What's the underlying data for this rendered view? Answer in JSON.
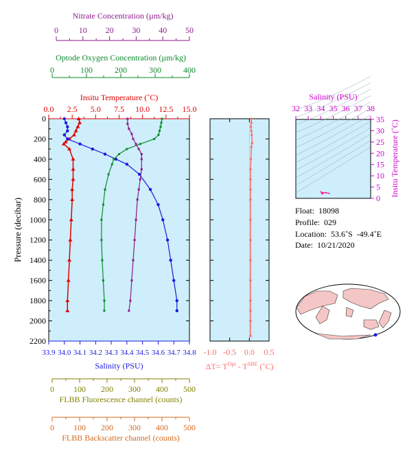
{
  "colors": {
    "nitrate": "#8b1a8b",
    "oxygen": "#0a8a2a",
    "temperature": "#e00000",
    "salinity": "#1a1add",
    "fluorescence": "#808000",
    "backscatter": "#d2691e",
    "delta_t": "#ff6a6a",
    "ts_axis": "#cc00cc",
    "plot_bg": "#cdeefa",
    "ts_point": "#ff1493",
    "land": "#f5c6c6",
    "ocean": "#ffffff"
  },
  "info": {
    "float_label": "Float:",
    "float_value": "18098",
    "profile_label": "Profile:",
    "profile_value": "029",
    "location_label": "Location:",
    "location_value": "53.6˚S  -49.4˚E",
    "date_label": "Date:",
    "date_value": "10/21/2020"
  },
  "delta_t_label": "ΔT= T",
  "delta_t_sup1": "Opt",
  "delta_t_mid": " - T",
  "delta_t_sup2": "SBE",
  "delta_t_unit": " (˚C)",
  "chart_data": [
    {
      "type": "line",
      "ylabel": "Pressure (decibar)",
      "ylim": [
        2200,
        0
      ],
      "yticks": [
        0,
        200,
        400,
        600,
        800,
        1000,
        1200,
        1400,
        1600,
        1800,
        2000,
        2200
      ],
      "ytick_labels": [
        "0",
        "200",
        "400",
        "600",
        "800",
        "1000",
        "1200",
        "1400",
        "1600",
        "1800",
        "2000",
        "2200"
      ],
      "axes": {
        "nitrate": {
          "label": "Nitrate Concentration (µm/kg)",
          "range": [
            0,
            50
          ],
          "ticks": [
            "0",
            "10",
            "20",
            "30",
            "40",
            "50"
          ]
        },
        "oxygen": {
          "label": "Optode Oxygen Concentration (µm/kg)",
          "range": [
            0,
            400
          ],
          "ticks": [
            "0",
            "100",
            "200",
            "300",
            "400"
          ]
        },
        "temperature": {
          "label": "Insitu Temperature (˚C)",
          "range": [
            0,
            15
          ],
          "ticks": [
            "0.0",
            "2.5",
            "5.0",
            "7.5",
            "10.0",
            "12.5",
            "15.0"
          ]
        },
        "salinity": {
          "label": "Salinity (PSU)",
          "range": [
            33.9,
            34.8
          ],
          "ticks": [
            "33.9",
            "34.0",
            "34.1",
            "34.2",
            "34.3",
            "34.4",
            "34.5",
            "34.6",
            "34.7",
            "34.8"
          ]
        },
        "fluorescence": {
          "label": "FLBB Fluorescence channel (counts)",
          "range": [
            0,
            500
          ],
          "ticks": [
            "0",
            "100",
            "200",
            "300",
            "400",
            "500"
          ]
        },
        "backscatter": {
          "label": "FLBB Backscatter channel (counts)",
          "range": [
            0,
            500
          ],
          "ticks": [
            "0",
            "100",
            "200",
            "300",
            "400",
            "500"
          ]
        }
      },
      "series": [
        {
          "name": "temperature",
          "x": [
            3.2,
            3.3,
            3.1,
            2.9,
            2.7,
            2.2,
            1.8,
            1.6,
            2.2,
            2.6,
            2.6,
            2.6,
            2.5,
            2.5,
            2.4,
            2.3,
            2.2,
            2.1,
            2.0,
            2.0
          ],
          "y": [
            0,
            40,
            80,
            120,
            160,
            200,
            230,
            250,
            300,
            400,
            500,
            600,
            700,
            800,
            1000,
            1200,
            1400,
            1600,
            1800,
            1900
          ]
        },
        {
          "name": "salinity",
          "x": [
            34.0,
            34.01,
            34.02,
            34.02,
            34.0,
            34.02,
            34.1,
            34.18,
            34.26,
            34.33,
            34.4,
            34.48,
            34.55,
            34.6,
            34.63,
            34.66,
            34.68,
            34.7,
            34.72,
            34.72
          ],
          "y": [
            0,
            40,
            80,
            120,
            160,
            200,
            250,
            300,
            350,
            400,
            450,
            550,
            700,
            850,
            1000,
            1200,
            1400,
            1600,
            1800,
            1900
          ]
        },
        {
          "name": "oxygen",
          "x": [
            322,
            320,
            318,
            315,
            312,
            300,
            260,
            222,
            200,
            185,
            180,
            170,
            160,
            155,
            150,
            150,
            152,
            155,
            158,
            158
          ],
          "y": [
            0,
            40,
            80,
            120,
            160,
            200,
            250,
            300,
            350,
            400,
            450,
            550,
            700,
            850,
            1000,
            1200,
            1400,
            1600,
            1800,
            1900
          ]
        },
        {
          "name": "nitrate",
          "x": [
            28,
            28,
            28.5,
            29.5,
            30,
            31,
            32,
            33,
            33,
            33,
            32.5,
            32,
            31.5,
            31,
            30.5,
            30,
            29.5,
            29,
            28.5
          ],
          "y": [
            0,
            50,
            100,
            150,
            200,
            250,
            300,
            350,
            400,
            500,
            600,
            700,
            800,
            1000,
            1200,
            1400,
            1600,
            1800,
            1900
          ]
        }
      ]
    },
    {
      "type": "line",
      "xlim": [
        -1.0,
        0.5
      ],
      "xticks": [
        "-1.0",
        "-0.5",
        "0.0",
        "0.5"
      ],
      "series": [
        {
          "name": "delta_t",
          "x": [
            0.05,
            0.05,
            0.04,
            0.05,
            0.06,
            0.07,
            0.05,
            0.04,
            0.03,
            0.03,
            0.03,
            0.03,
            0.03,
            0.03,
            0.03,
            0.03,
            0.03,
            0.03,
            0.03,
            0.03
          ],
          "y": [
            0,
            40,
            80,
            120,
            160,
            240,
            280,
            400,
            500,
            600,
            700,
            800,
            1000,
            1200,
            1400,
            1600,
            1800,
            1900,
            2000,
            2150
          ]
        }
      ]
    },
    {
      "type": "scatter",
      "title": "Salinity (PSU)",
      "xlim": [
        32,
        38
      ],
      "xticks": [
        "32",
        "33",
        "34",
        "35",
        "36",
        "37",
        "38"
      ],
      "ylabel": "Insitu Temperature (˚C)",
      "ylim": [
        0,
        35
      ],
      "yticks": [
        "0",
        "5",
        "10",
        "15",
        "20",
        "25",
        "30",
        "35"
      ],
      "series": [
        {
          "name": "ts",
          "x": [
            34.0,
            34.02,
            34.1,
            34.3,
            34.5,
            34.7,
            34.7,
            34.6,
            34.2,
            34.0
          ],
          "y": [
            3.2,
            2.7,
            1.8,
            2.6,
            2.5,
            2.2,
            2.0,
            2.3,
            2.5,
            2.9
          ]
        }
      ]
    }
  ]
}
